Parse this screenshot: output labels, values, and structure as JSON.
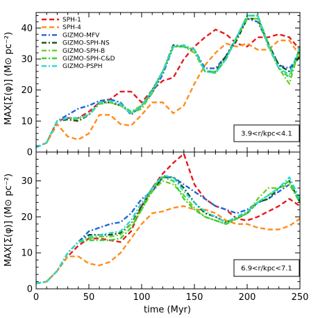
{
  "chart_data": [
    {
      "type": "line",
      "panel": "top",
      "title": "",
      "xlabel": "",
      "ylabel": "MAX[Σ(φ)] (M⊙ pc⁻²)",
      "xlim": [
        0,
        250
      ],
      "ylim": [
        0,
        45
      ],
      "xticks": [
        0,
        50,
        100,
        150,
        200,
        250
      ],
      "yticks": [
        0,
        10,
        20,
        30,
        40
      ],
      "grid": false,
      "legend_position": "top-left",
      "annotation": "3.9<r/kpc<4.1",
      "series": [
        {
          "name": "SPH-1",
          "color": "#e41a1c",
          "dash": "dashed",
          "x": [
            0,
            10,
            20,
            30,
            40,
            50,
            60,
            70,
            80,
            90,
            100,
            110,
            120,
            130,
            140,
            150,
            160,
            170,
            180,
            190,
            200,
            210,
            220,
            230,
            240,
            250
          ],
          "y": [
            1.5,
            3,
            10,
            11,
            11,
            13,
            16,
            17,
            19.5,
            19.5,
            16,
            20,
            23,
            24,
            30,
            34,
            37,
            39.5,
            38,
            35,
            34,
            37,
            37,
            38,
            37,
            33
          ]
        },
        {
          "name": "SPH-4",
          "color": "#ff8c1a",
          "dash": "dashed",
          "x": [
            0,
            10,
            20,
            30,
            40,
            50,
            60,
            70,
            80,
            90,
            100,
            110,
            120,
            130,
            140,
            150,
            160,
            170,
            180,
            190,
            200,
            210,
            220,
            230,
            240,
            250
          ],
          "y": [
            1.5,
            3,
            9,
            5,
            4,
            6,
            12,
            12,
            9,
            8.5,
            12,
            16,
            16,
            12.5,
            15,
            22,
            28,
            32,
            35,
            34,
            35,
            33,
            33,
            36,
            36,
            31
          ]
        },
        {
          "name": "GIZMO-MFV",
          "color": "#1c66d8",
          "dash": "dashdot",
          "x": [
            0,
            10,
            20,
            30,
            40,
            50,
            60,
            70,
            80,
            90,
            100,
            110,
            120,
            130,
            140,
            150,
            160,
            170,
            180,
            190,
            200,
            210,
            220,
            230,
            240,
            250
          ],
          "y": [
            1.5,
            3,
            10,
            12,
            14,
            15,
            16.5,
            17,
            16,
            12,
            15,
            19,
            25,
            34,
            34,
            33,
            27,
            27,
            31,
            37,
            43,
            42,
            35,
            28,
            27,
            31
          ]
        },
        {
          "name": "GIZMO-SPH-NS",
          "color": "#145214",
          "dash": "dashdot",
          "x": [
            0,
            10,
            20,
            30,
            40,
            50,
            60,
            70,
            80,
            90,
            100,
            110,
            120,
            130,
            140,
            150,
            160,
            170,
            180,
            190,
            200,
            210,
            220,
            230,
            240,
            250
          ],
          "y": [
            1.5,
            3,
            10,
            10.5,
            10,
            12,
            16,
            16,
            15,
            13,
            14,
            20,
            26,
            34.5,
            34,
            33,
            26,
            26,
            31,
            36,
            43,
            43,
            35,
            28,
            26,
            31
          ]
        },
        {
          "name": "GIZMO-SPH-B",
          "color": "#6fcd2b",
          "dash": "dashdot",
          "x": [
            0,
            10,
            20,
            30,
            40,
            50,
            60,
            70,
            80,
            90,
            100,
            110,
            120,
            130,
            140,
            150,
            160,
            170,
            180,
            190,
            200,
            210,
            220,
            230,
            240,
            250
          ],
          "y": [
            1.5,
            3,
            10,
            11,
            10.5,
            12,
            15.5,
            16,
            15,
            12.5,
            14,
            19,
            26,
            34,
            34,
            32,
            26,
            26,
            30,
            37,
            43,
            43,
            34,
            27,
            22,
            34
          ]
        },
        {
          "name": "GIZMO-SPH-C&D",
          "color": "#31d431",
          "dash": "dashdot",
          "x": [
            0,
            10,
            20,
            30,
            40,
            50,
            60,
            70,
            80,
            90,
            100,
            110,
            120,
            130,
            140,
            150,
            160,
            170,
            180,
            190,
            200,
            210,
            220,
            230,
            240,
            250
          ],
          "y": [
            1.5,
            3,
            10,
            11,
            11,
            12,
            16,
            16.5,
            15.5,
            13,
            15,
            20,
            26,
            34,
            34,
            33,
            26,
            25.5,
            30,
            37,
            44,
            44,
            35,
            27,
            24,
            33
          ]
        },
        {
          "name": "GIZMO-PSPH",
          "color": "#29d8d8",
          "dash": "dashdot",
          "x": [
            0,
            10,
            20,
            30,
            40,
            50,
            60,
            70,
            80,
            90,
            100,
            110,
            120,
            130,
            140,
            150,
            160,
            170,
            180,
            190,
            200,
            210,
            220,
            230,
            240,
            250
          ],
          "y": [
            1.5,
            3,
            10,
            11,
            11,
            12,
            16,
            16.5,
            15.5,
            12.5,
            15,
            19.5,
            26,
            34,
            34.5,
            33,
            26,
            25.5,
            30,
            37,
            44,
            44,
            34.5,
            27,
            25,
            34
          ]
        }
      ]
    },
    {
      "type": "line",
      "panel": "bottom",
      "title": "",
      "xlabel": "time (Myr)",
      "ylabel": "MAX[Σ(φ)] (M⊙ pc⁻²)",
      "xlim": [
        0,
        250
      ],
      "ylim": [
        0,
        38
      ],
      "xticks": [
        0,
        50,
        100,
        150,
        200,
        250
      ],
      "yticks": [
        0,
        10,
        20,
        30
      ],
      "grid": false,
      "annotation": "6.9<r/kpc<7.1",
      "series": [
        {
          "name": "SPH-1",
          "color": "#e41a1c",
          "dash": "dashed",
          "x": [
            0,
            10,
            20,
            30,
            40,
            50,
            60,
            70,
            80,
            90,
            100,
            110,
            120,
            130,
            140,
            150,
            160,
            170,
            180,
            190,
            200,
            210,
            220,
            230,
            240,
            250
          ],
          "y": [
            1.5,
            2,
            5,
            9,
            12,
            14,
            14,
            13.5,
            13,
            16,
            23,
            28,
            32,
            35,
            37.5,
            29,
            25,
            23,
            22,
            19.5,
            19,
            20,
            21.5,
            23,
            25,
            23
          ]
        },
        {
          "name": "SPH-4",
          "color": "#ff8c1a",
          "dash": "dashed",
          "x": [
            0,
            10,
            20,
            30,
            40,
            50,
            60,
            70,
            80,
            90,
            100,
            110,
            120,
            130,
            140,
            150,
            160,
            170,
            180,
            190,
            200,
            210,
            220,
            230,
            240,
            250
          ],
          "y": [
            1.5,
            2,
            5,
            9,
            9,
            7,
            6.5,
            7.5,
            10,
            14,
            18,
            21,
            21.5,
            22.5,
            23,
            22,
            22,
            21,
            19,
            18,
            18,
            17,
            16.5,
            16.5,
            17.5,
            19.5
          ]
        },
        {
          "name": "GIZMO-MFV",
          "color": "#1c66d8",
          "dash": "dashdot",
          "x": [
            0,
            10,
            20,
            30,
            40,
            50,
            60,
            70,
            80,
            90,
            100,
            110,
            120,
            130,
            140,
            150,
            160,
            170,
            180,
            190,
            200,
            210,
            220,
            230,
            240,
            250
          ],
          "y": [
            1.5,
            2,
            5,
            10,
            13,
            16,
            17,
            18,
            18.5,
            21,
            25,
            27,
            31,
            31,
            29,
            27,
            25,
            23,
            22,
            21,
            22,
            24,
            25,
            27,
            29,
            25
          ]
        },
        {
          "name": "GIZMO-SPH-NS",
          "color": "#145214",
          "dash": "dashdot",
          "x": [
            0,
            10,
            20,
            30,
            40,
            50,
            60,
            70,
            80,
            90,
            100,
            110,
            120,
            130,
            140,
            150,
            160,
            170,
            180,
            190,
            200,
            210,
            220,
            230,
            240,
            250
          ],
          "y": [
            1.5,
            2,
            5,
            10,
            13,
            15,
            15,
            15,
            15.5,
            18,
            23,
            27,
            31,
            31,
            28,
            24,
            21,
            20,
            18.5,
            19.5,
            21,
            24,
            25,
            28,
            30,
            24
          ]
        },
        {
          "name": "GIZMO-SPH-B",
          "color": "#6fcd2b",
          "dash": "dashdot",
          "x": [
            0,
            10,
            20,
            30,
            40,
            50,
            60,
            70,
            80,
            90,
            100,
            110,
            120,
            130,
            140,
            150,
            160,
            170,
            180,
            190,
            200,
            210,
            220,
            230,
            240,
            250
          ],
          "y": [
            1.5,
            2,
            5,
            10,
            13,
            14,
            14.5,
            14.5,
            15,
            18,
            22,
            27,
            30,
            29,
            26,
            22.5,
            20,
            19,
            18,
            19.5,
            21,
            25,
            28,
            28,
            29,
            24
          ]
        },
        {
          "name": "GIZMO-SPH-C&D",
          "color": "#31d431",
          "dash": "dashdot",
          "x": [
            0,
            10,
            20,
            30,
            40,
            50,
            60,
            70,
            80,
            90,
            100,
            110,
            120,
            130,
            140,
            150,
            160,
            170,
            180,
            190,
            200,
            210,
            220,
            230,
            240,
            250
          ],
          "y": [
            1.5,
            2,
            5,
            10,
            13,
            13.5,
            13.5,
            13.5,
            14,
            17,
            22,
            28,
            31,
            30,
            25,
            22,
            20,
            19,
            18,
            19.5,
            21,
            24,
            26,
            28,
            30,
            24
          ]
        },
        {
          "name": "GIZMO-PSPH",
          "color": "#29d8d8",
          "dash": "dashdot",
          "x": [
            0,
            10,
            20,
            30,
            40,
            50,
            60,
            70,
            80,
            90,
            100,
            110,
            120,
            130,
            140,
            150,
            160,
            170,
            180,
            190,
            200,
            210,
            220,
            230,
            240,
            250
          ],
          "y": [
            1.5,
            2,
            5,
            10,
            13,
            14.5,
            15,
            15.5,
            16,
            19,
            24,
            28,
            31.5,
            31,
            27,
            24,
            21.5,
            20,
            18.5,
            20,
            21.5,
            24,
            26,
            28,
            31,
            25
          ]
        }
      ]
    }
  ]
}
